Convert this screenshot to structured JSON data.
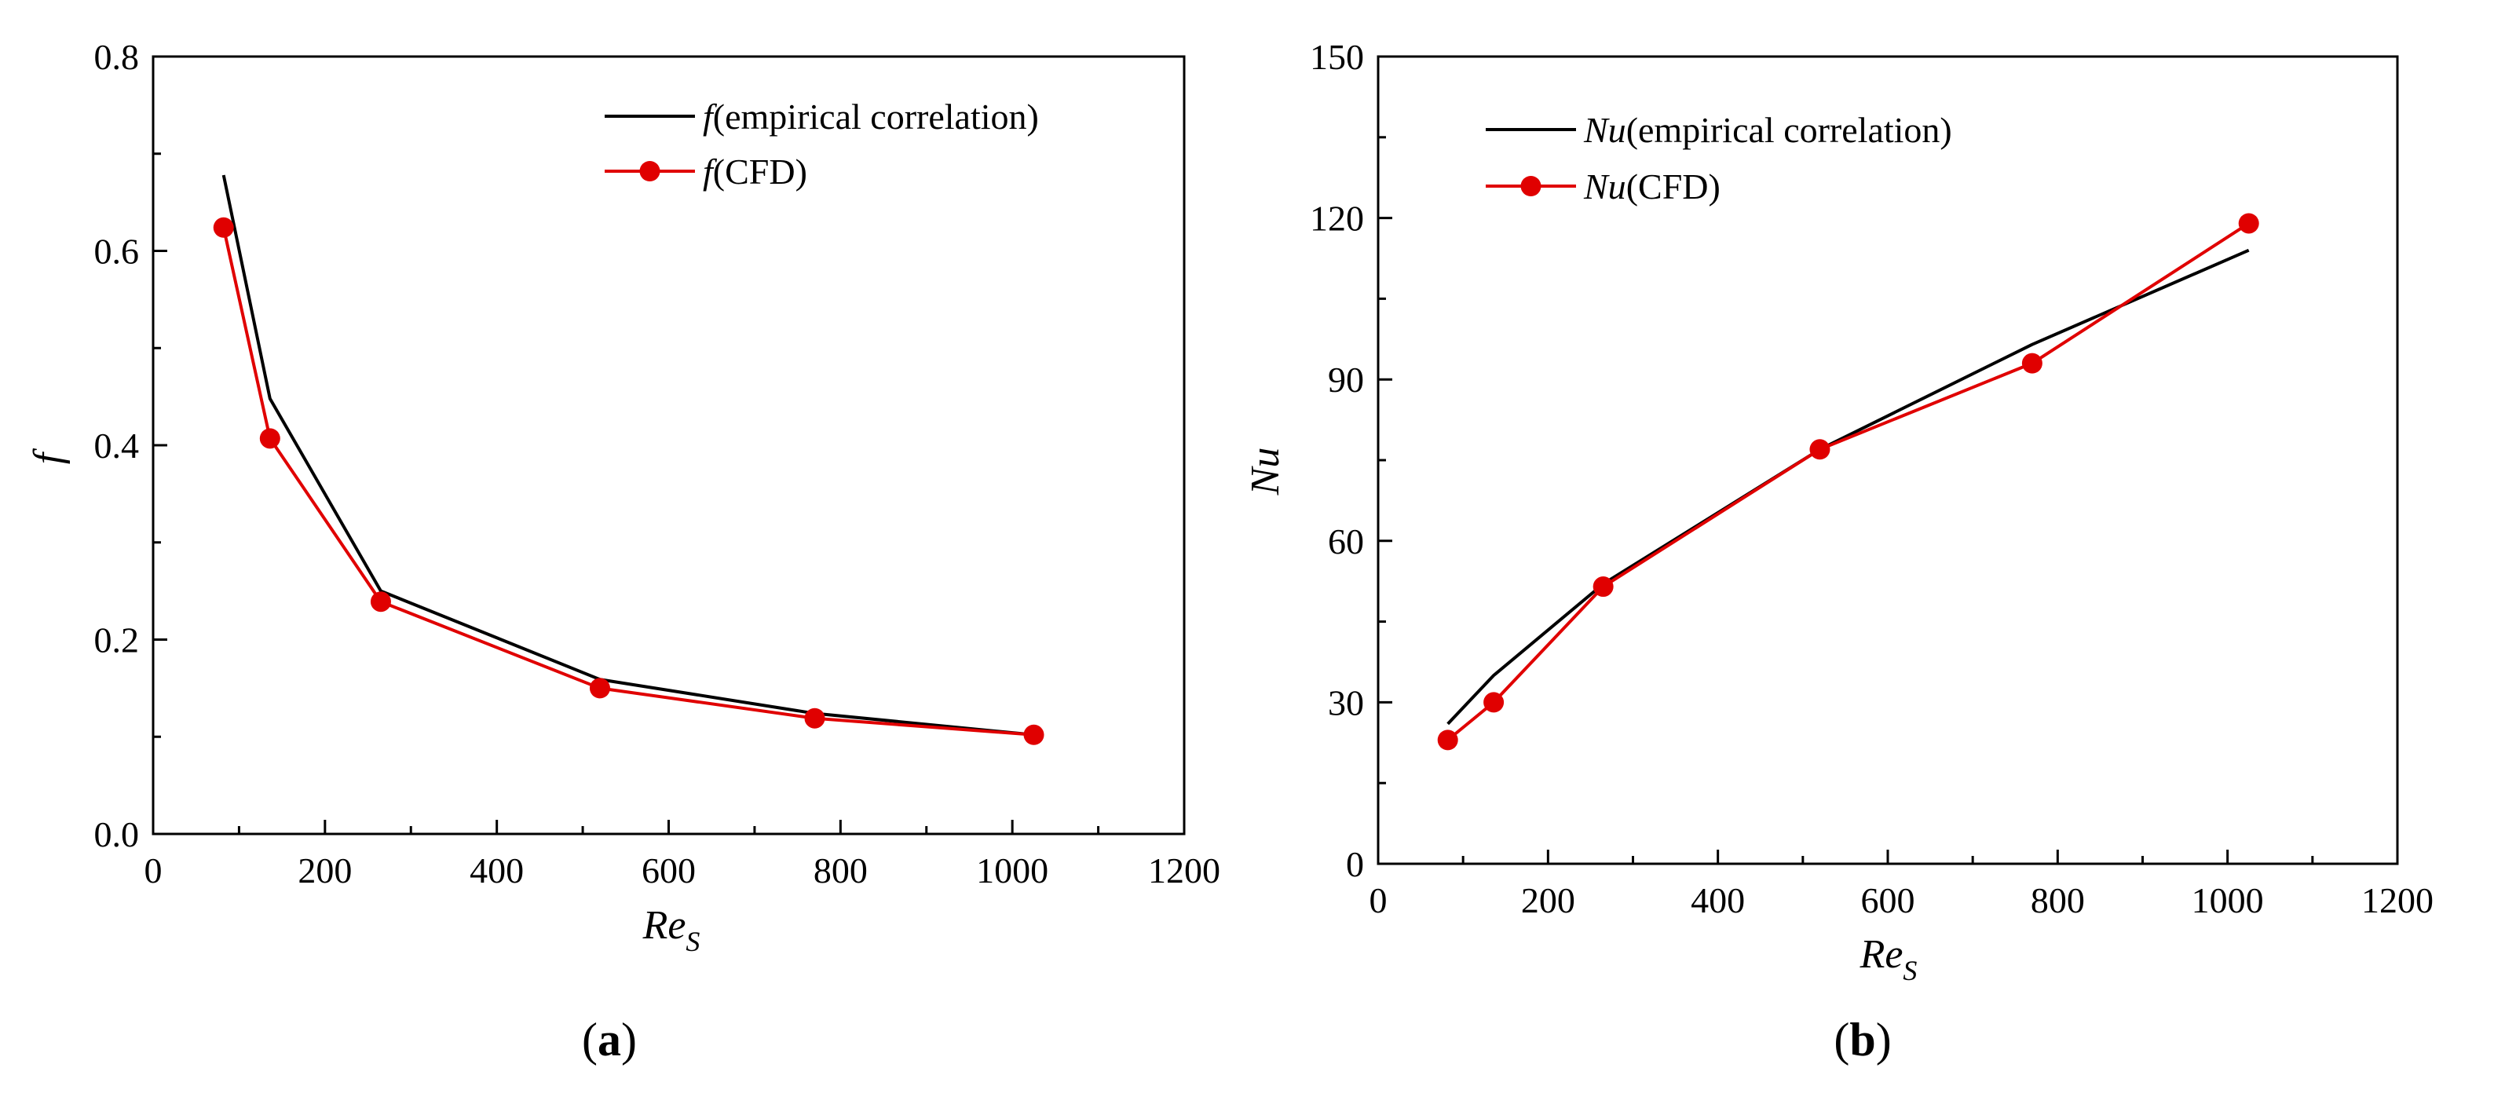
{
  "colors": {
    "empirical": "#000000",
    "cfd": "#e00000",
    "axis": "#000000"
  },
  "chart_data": [
    {
      "type": "line",
      "panel": "a",
      "ylabel_symbol": "f",
      "xlabel_main": "Re",
      "xlabel_sub": "S",
      "xlim": [
        0,
        1200
      ],
      "ylim": [
        0,
        0.8
      ],
      "xticks": [
        0,
        200,
        400,
        600,
        800,
        1000,
        1200
      ],
      "yticks": [
        0.0,
        0.2,
        0.4,
        0.6,
        0.8
      ],
      "ytick_labels": [
        "0.0",
        "0.2",
        "0.4",
        "0.6",
        "0.8"
      ],
      "legend_position": "top-right",
      "series": [
        {
          "name": "f(empirical correlation)",
          "symbol": "f",
          "suffix": "(empirical correlation)",
          "style": "line",
          "color": "#000000",
          "x": [
            82,
            136,
            265,
            520,
            770,
            1025
          ],
          "y": [
            0.678,
            0.448,
            0.25,
            0.159,
            0.124,
            0.102
          ]
        },
        {
          "name": "f(CFD)",
          "symbol": "f",
          "suffix": "(CFD)",
          "style": "line-marker",
          "color": "#e00000",
          "x": [
            82,
            136,
            265,
            520,
            770,
            1025
          ],
          "y": [
            0.624,
            0.407,
            0.239,
            0.15,
            0.119,
            0.102
          ]
        }
      ]
    },
    {
      "type": "line",
      "panel": "b",
      "ylabel_symbol": "Nu",
      "xlabel_main": "Re",
      "xlabel_sub": "S",
      "xlim": [
        0,
        1200
      ],
      "ylim": [
        0,
        150
      ],
      "xticks": [
        0,
        200,
        400,
        600,
        800,
        1000,
        1200
      ],
      "yticks": [
        0,
        30,
        60,
        90,
        120,
        150
      ],
      "ytick_labels": [
        "0",
        "30",
        "60",
        "90",
        "120",
        "150"
      ],
      "legend_position": "top-left",
      "series": [
        {
          "name": "Nu(empirical correlation)",
          "symbol": "Nu",
          "suffix": "(empirical correlation)",
          "style": "line",
          "color": "#000000",
          "x": [
            82,
            136,
            265,
            520,
            770,
            1025
          ],
          "y": [
            26,
            35,
            52,
            77,
            96.5,
            114
          ]
        },
        {
          "name": "Nu(CFD)",
          "symbol": "Nu",
          "suffix": "(CFD)",
          "style": "line-marker",
          "color": "#e00000",
          "x": [
            82,
            136,
            265,
            520,
            770,
            1025
          ],
          "y": [
            23,
            30,
            51.5,
            77,
            93,
            119
          ]
        }
      ]
    }
  ],
  "panel_labels": {
    "a": "a",
    "b": "b"
  }
}
